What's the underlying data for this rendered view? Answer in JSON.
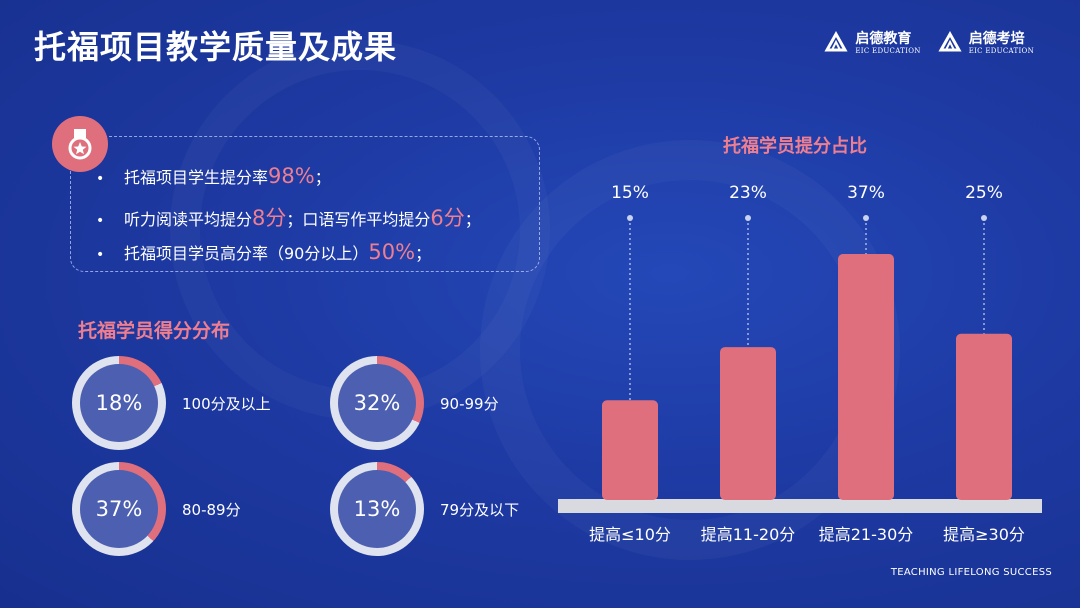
{
  "page": {
    "title": "托福项目教学质量及成果",
    "footer": "TEACHING LIFELONG SUCCESS"
  },
  "logos": [
    {
      "name": "启德教育",
      "sub": "EIC EDUCATION"
    },
    {
      "name": "启德考培",
      "sub": "EIC EDUCATION"
    }
  ],
  "summary": {
    "line1": {
      "text": "托福项目学生提分率",
      "value": "98%",
      "tail": "；"
    },
    "line2": {
      "text": "听力阅读平均提分",
      "value": "8分",
      "mid": "；口语写作平均提分",
      "value2": "6分",
      "tail": "；"
    },
    "line3": {
      "text": "托福项目学员高分率（90分以上）",
      "value": "50%",
      "tail": "；"
    }
  },
  "distribution": {
    "title": "托福学员得分分布",
    "items": [
      {
        "percent_text": "18%",
        "fraction": 0.18,
        "label": "100分及以上"
      },
      {
        "percent_text": "32%",
        "fraction": 0.32,
        "label": "90-99分"
      },
      {
        "percent_text": "37%",
        "fraction": 0.37,
        "label": "80-89分"
      },
      {
        "percent_text": "13%",
        "fraction": 0.13,
        "label": "79分及以下"
      }
    ]
  },
  "colors": {
    "accent": "#e06f7d",
    "ring_track": "#dfe3ef",
    "ring_fill": "#4c5fb0",
    "baseline": "#d9d9e0"
  },
  "chart_data": {
    "type": "bar",
    "title": "托福学员提分占比",
    "categories": [
      "提高≤10分",
      "提高11-20分",
      "提高21-30分",
      "提高≥30分"
    ],
    "values": [
      15,
      23,
      37,
      25
    ],
    "value_labels": [
      "15%",
      "23%",
      "37%",
      "25%"
    ],
    "ylim": [
      0,
      37
    ],
    "grid": false
  }
}
